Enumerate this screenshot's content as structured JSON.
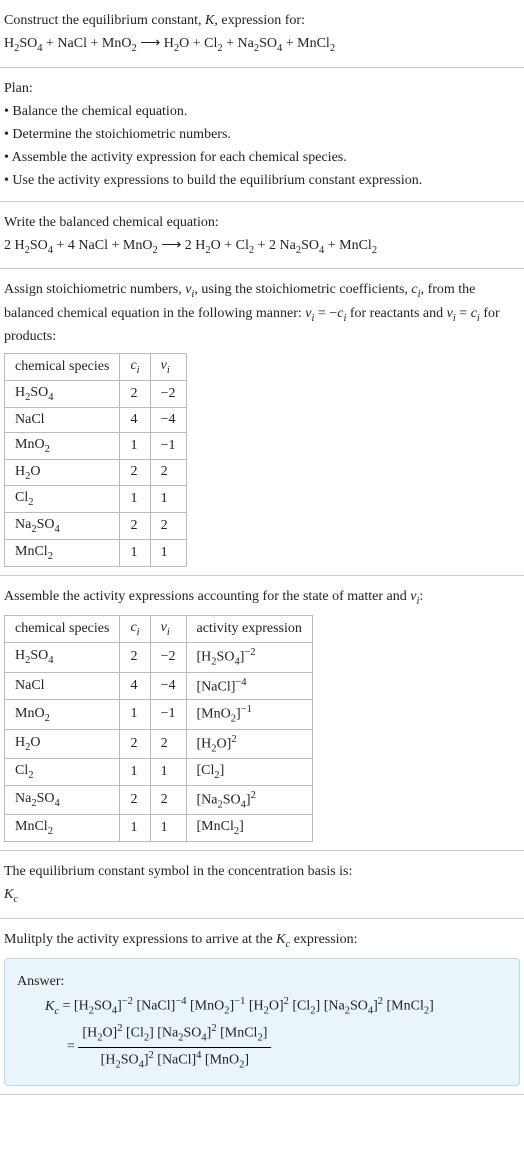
{
  "intro": {
    "title": "Construct the equilibrium constant, <i>K</i>, expression for:",
    "equation": "H<sub>2</sub>SO<sub>4</sub> + NaCl + MnO<sub>2</sub> ⟶ H<sub>2</sub>O + Cl<sub>2</sub> + Na<sub>2</sub>SO<sub>4</sub> + MnCl<sub>2</sub>"
  },
  "plan": {
    "heading": "Plan:",
    "items": [
      "• Balance the chemical equation.",
      "• Determine the stoichiometric numbers.",
      "• Assemble the activity expression for each chemical species.",
      "• Use the activity expressions to build the equilibrium constant expression."
    ]
  },
  "balanced": {
    "heading": "Write the balanced chemical equation:",
    "equation": "2 H<sub>2</sub>SO<sub>4</sub> + 4 NaCl + MnO<sub>2</sub> ⟶ 2 H<sub>2</sub>O + Cl<sub>2</sub> + 2 Na<sub>2</sub>SO<sub>4</sub> + MnCl<sub>2</sub>"
  },
  "assign": {
    "heading": "Assign stoichiometric numbers, <i>ν<sub>i</sub></i>, using the stoichiometric coefficients, <i>c<sub>i</sub></i>, from the balanced chemical equation in the following manner: <i>ν<sub>i</sub></i> = −<i>c<sub>i</sub></i> for reactants and <i>ν<sub>i</sub></i> = <i>c<sub>i</sub></i> for products:",
    "table": {
      "columns": [
        "chemical species",
        "<i>c<sub>i</sub></i>",
        "<i>ν<sub>i</sub></i>"
      ],
      "rows": [
        [
          "H<sub>2</sub>SO<sub>4</sub>",
          "2",
          "−2"
        ],
        [
          "NaCl",
          "4",
          "−4"
        ],
        [
          "MnO<sub>2</sub>",
          "1",
          "−1"
        ],
        [
          "H<sub>2</sub>O",
          "2",
          "2"
        ],
        [
          "Cl<sub>2</sub>",
          "1",
          "1"
        ],
        [
          "Na<sub>2</sub>SO<sub>4</sub>",
          "2",
          "2"
        ],
        [
          "MnCl<sub>2</sub>",
          "1",
          "1"
        ]
      ]
    }
  },
  "activity": {
    "heading": "Assemble the activity expressions accounting for the state of matter and <i>ν<sub>i</sub></i>:",
    "table": {
      "columns": [
        "chemical species",
        "<i>c<sub>i</sub></i>",
        "<i>ν<sub>i</sub></i>",
        "activity expression"
      ],
      "rows": [
        [
          "H<sub>2</sub>SO<sub>4</sub>",
          "2",
          "−2",
          "[H<sub>2</sub>SO<sub>4</sub>]<sup>−2</sup>"
        ],
        [
          "NaCl",
          "4",
          "−4",
          "[NaCl]<sup>−4</sup>"
        ],
        [
          "MnO<sub>2</sub>",
          "1",
          "−1",
          "[MnO<sub>2</sub>]<sup>−1</sup>"
        ],
        [
          "H<sub>2</sub>O",
          "2",
          "2",
          "[H<sub>2</sub>O]<sup>2</sup>"
        ],
        [
          "Cl<sub>2</sub>",
          "1",
          "1",
          "[Cl<sub>2</sub>]"
        ],
        [
          "Na<sub>2</sub>SO<sub>4</sub>",
          "2",
          "2",
          "[Na<sub>2</sub>SO<sub>4</sub>]<sup>2</sup>"
        ],
        [
          "MnCl<sub>2</sub>",
          "1",
          "1",
          "[MnCl<sub>2</sub>]"
        ]
      ]
    }
  },
  "symbol": {
    "heading": "The equilibrium constant symbol in the concentration basis is:",
    "value": "<i>K<sub>c</sub></i>"
  },
  "multiply": {
    "heading": "Mulitply the activity expressions to arrive at the <i>K<sub>c</sub></i> expression:"
  },
  "answer": {
    "label": "Answer:",
    "line1": "<i>K<sub>c</sub></i> = [H<sub>2</sub>SO<sub>4</sub>]<sup>−2</sup> [NaCl]<sup>−4</sup> [MnO<sub>2</sub>]<sup>−1</sup> [H<sub>2</sub>O]<sup>2</sup> [Cl<sub>2</sub>] [Na<sub>2</sub>SO<sub>4</sub>]<sup>2</sup> [MnCl<sub>2</sub>]",
    "eq": "= ",
    "num": "[H<sub>2</sub>O]<sup>2</sup> [Cl<sub>2</sub>] [Na<sub>2</sub>SO<sub>4</sub>]<sup>2</sup> [MnCl<sub>2</sub>]",
    "den": "[H<sub>2</sub>SO<sub>4</sub>]<sup>2</sup> [NaCl]<sup>4</sup> [MnO<sub>2</sub>]"
  },
  "colors": {
    "border": "#ccc",
    "tableBorder": "#bbb",
    "answerBg": "#eaf4fb",
    "answerBorder": "#b8d8ee",
    "text": "#222"
  }
}
